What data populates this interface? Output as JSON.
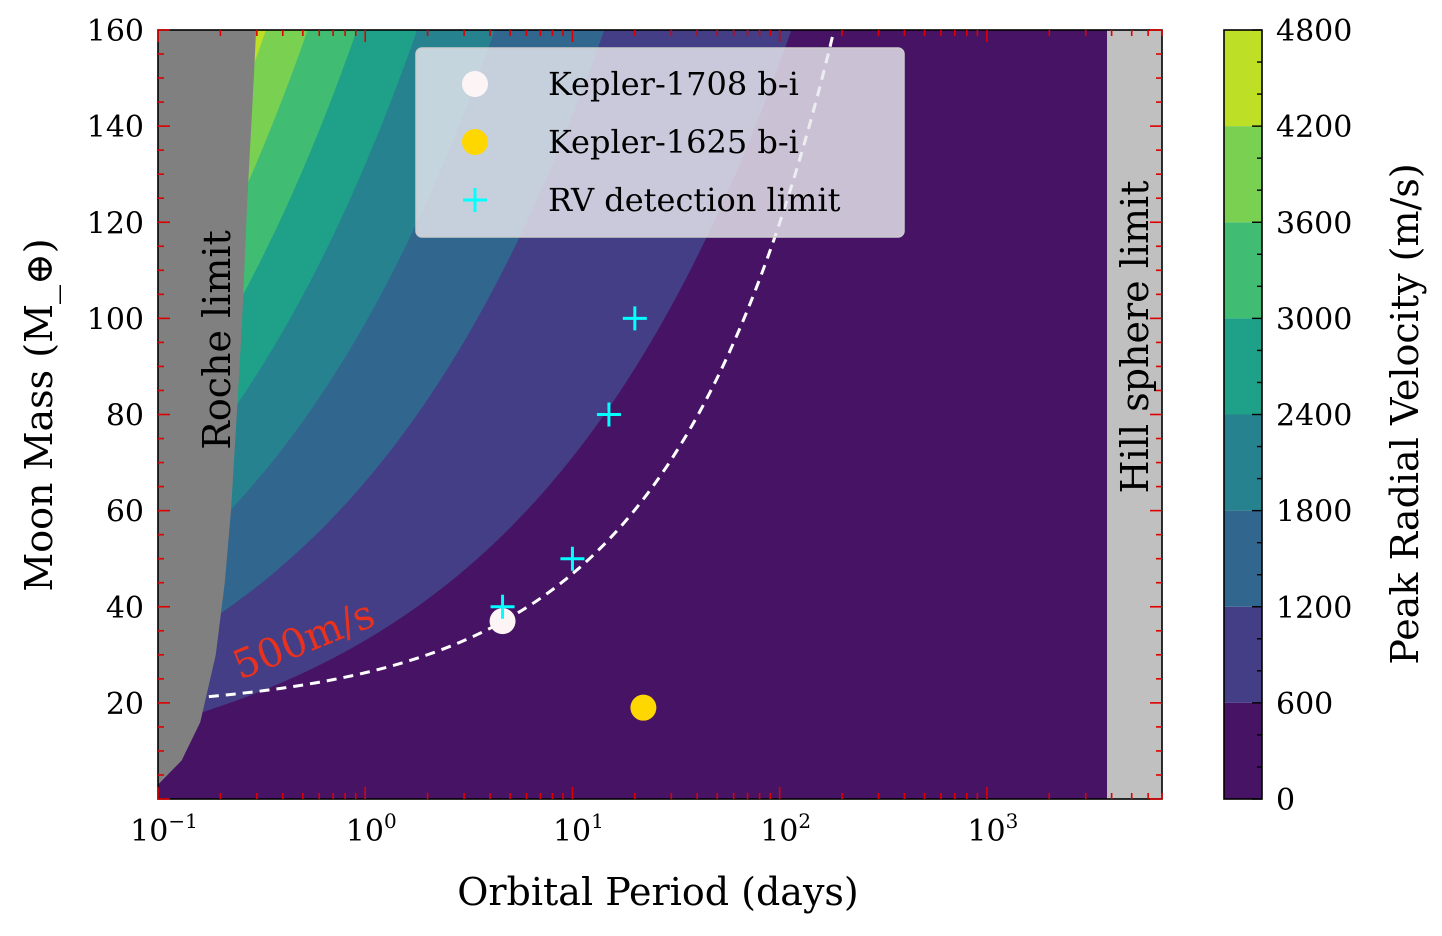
{
  "chart_data": {
    "type": "heatmap",
    "xlabel": "Orbital Period (days)",
    "ylabel": "Moon Mass (M_⊕)",
    "x_scale": "log",
    "xlim": [
      0.1,
      7000
    ],
    "ylim": [
      0,
      160
    ],
    "x_ticks": [
      {
        "value": 0.1,
        "base": "10",
        "exp": "−1"
      },
      {
        "value": 1,
        "base": "10",
        "exp": "0"
      },
      {
        "value": 10,
        "base": "10",
        "exp": "1"
      },
      {
        "value": 100,
        "base": "10",
        "exp": "2"
      },
      {
        "value": 1000,
        "base": "10",
        "exp": "3"
      }
    ],
    "y_ticks": [
      "20",
      "40",
      "60",
      "80",
      "100",
      "120",
      "140",
      "160"
    ],
    "colorbar": {
      "label": "Peak Radial Velocity (m/s)",
      "range": [
        0,
        4800
      ],
      "levels": [
        0,
        600,
        1200,
        1800,
        2400,
        3000,
        3600,
        4200,
        4800
      ],
      "tick_labels": [
        "0",
        "600",
        "1200",
        "1800",
        "2400",
        "3000",
        "3600",
        "4200",
        "4800"
      ],
      "colors": [
        "#471365",
        "#433e85",
        "#31668e",
        "#26828e",
        "#1fa088",
        "#40bd72",
        "#7ad151",
        "#bddf26",
        "#dfe318"
      ]
    },
    "series": [
      {
        "name": "Kepler-1708 b-i",
        "marker": "circle",
        "color": "#fdf5f5",
        "points": [
          {
            "x": 4.6,
            "y": 37
          }
        ]
      },
      {
        "name": "Kepler-1625 b-i",
        "marker": "circle",
        "color": "#ffd700",
        "points": [
          {
            "x": 22,
            "y": 19
          }
        ]
      },
      {
        "name": "RV detection limit",
        "marker": "plus",
        "color": "#00ffff",
        "points": [
          {
            "x": 4.6,
            "y": 40
          },
          {
            "x": 10,
            "y": 50
          },
          {
            "x": 15,
            "y": 80
          },
          {
            "x": 20,
            "y": 100
          }
        ]
      }
    ],
    "contour_line": {
      "label": "500m/s",
      "label_color": "#e8321e",
      "line_color": "#ffffff",
      "style": "dashed"
    },
    "regions": [
      {
        "label": "Roche limit",
        "color": "#808080"
      },
      {
        "label": "Hill sphere limit",
        "color": "#c0c0c0",
        "x_start": 3800
      }
    ],
    "legend_position": "top-center",
    "grid": false
  }
}
